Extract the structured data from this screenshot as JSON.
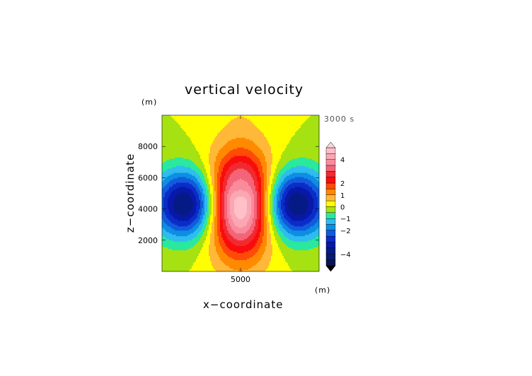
{
  "chart_data": {
    "type": "heatmap",
    "title": "vertical velocity",
    "xlabel": "x−coordinate",
    "ylabel": "z−coordinate",
    "x_unit": "(m)",
    "y_unit": "(m)",
    "time_label": "3000 s",
    "xlim": [
      0,
      10000
    ],
    "ylim": [
      0,
      10000
    ],
    "x_ticks": [
      {
        "value": 5000,
        "label": "5000"
      }
    ],
    "y_ticks": [
      {
        "value": 2000,
        "label": "2000"
      },
      {
        "value": 4000,
        "label": "4000"
      },
      {
        "value": 6000,
        "label": "6000"
      },
      {
        "value": 8000,
        "label": "8000"
      }
    ],
    "field": {
      "description_values": "vertical velocity contours; updraft centered at x=5000, z=4300 with max about 4.5; downdrafts at x~1600 and x~8400, z~4300 with min about -4",
      "updraft_center": [
        5000,
        4300
      ],
      "updraft_max": 4.5,
      "downdraft_centers": [
        [
          1600,
          4300
        ],
        [
          8400,
          4300
        ]
      ],
      "downdraft_min": -4.2
    },
    "colorbar": {
      "min": -5,
      "max": 5,
      "tick_labels": [
        {
          "value": 4,
          "label": "4"
        },
        {
          "value": 2,
          "label": "2"
        },
        {
          "value": 1,
          "label": "1"
        },
        {
          "value": 0,
          "label": "0"
        },
        {
          "value": -1,
          "label": "−1"
        },
        {
          "value": -2,
          "label": "−2"
        },
        {
          "value": -4,
          "label": "−4"
        }
      ],
      "levels": [
        {
          "from": 4.5,
          "to": 5.0,
          "color": "#ffc0c8"
        },
        {
          "from": 4.0,
          "to": 4.5,
          "color": "#fba7b3"
        },
        {
          "from": 3.5,
          "to": 4.0,
          "color": "#f98c9c"
        },
        {
          "from": 3.0,
          "to": 3.5,
          "color": "#f46478"
        },
        {
          "from": 2.5,
          "to": 3.0,
          "color": "#f22a30"
        },
        {
          "from": 2.0,
          "to": 2.5,
          "color": "#f80c0c"
        },
        {
          "from": 1.5,
          "to": 2.0,
          "color": "#ff4a08"
        },
        {
          "from": 1.0,
          "to": 1.5,
          "color": "#ff8a00"
        },
        {
          "from": 0.5,
          "to": 1.0,
          "color": "#ffb838"
        },
        {
          "from": 0.0,
          "to": 0.5,
          "color": "#ffff00"
        },
        {
          "from": -0.5,
          "to": 0.0,
          "color": "#a6e212"
        },
        {
          "from": -1.0,
          "to": -0.5,
          "color": "#2ae89e"
        },
        {
          "from": -1.5,
          "to": -1.0,
          "color": "#2fbcee"
        },
        {
          "from": -2.0,
          "to": -1.5,
          "color": "#0c8ee4"
        },
        {
          "from": -2.5,
          "to": -2.0,
          "color": "#125adc"
        },
        {
          "from": -3.0,
          "to": -2.5,
          "color": "#0a2cc8"
        },
        {
          "from": -3.5,
          "to": -3.0,
          "color": "#0818a8"
        },
        {
          "from": -4.0,
          "to": -3.5,
          "color": "#061a86"
        },
        {
          "from": -4.5,
          "to": -4.0,
          "color": "#081a6a"
        },
        {
          "from": -5.0,
          "to": -4.5,
          "color": "#0a1450"
        }
      ],
      "over_color": "#f8d8dc",
      "under_color": "#000000"
    }
  }
}
